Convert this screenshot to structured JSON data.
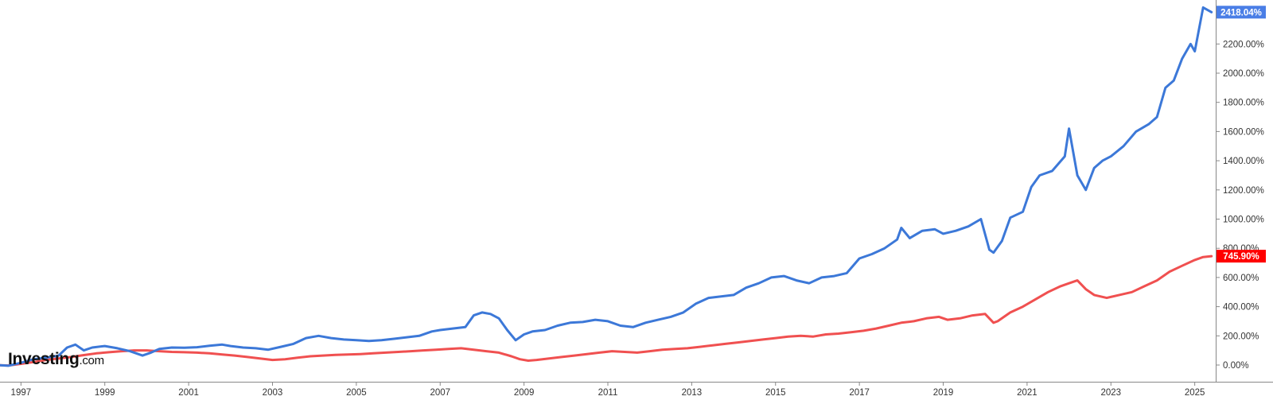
{
  "logo": {
    "main": "Investing",
    "suffix": ".com"
  },
  "chart_data": {
    "type": "line",
    "title": "",
    "xlabel": "",
    "ylabel": "",
    "x_range": [
      1996.5,
      2025.5
    ],
    "y_range": [
      -0.1,
      26.0
    ],
    "x_ticks": [
      "1997",
      "1999",
      "2001",
      "2003",
      "2005",
      "2007",
      "2009",
      "2011",
      "2013",
      "2015",
      "2017",
      "2019",
      "2021",
      "2023",
      "2025"
    ],
    "y_ticks": [
      {
        "value": 0,
        "label": "0.00%"
      },
      {
        "value": 200,
        "label": "200.00%"
      },
      {
        "value": 400,
        "label": "400.00%"
      },
      {
        "value": 600,
        "label": "600.00%"
      },
      {
        "value": 800,
        "label": "800.00%"
      },
      {
        "value": 1000,
        "label": "1000.00%"
      },
      {
        "value": 1200,
        "label": "1200.00%"
      },
      {
        "value": 1400,
        "label": "1400.00%"
      },
      {
        "value": 1600,
        "label": "1600.00%"
      },
      {
        "value": 1800,
        "label": "1800.00%"
      },
      {
        "value": 2000,
        "label": "2000.00%"
      },
      {
        "value": 2200,
        "label": "2200.00%"
      }
    ],
    "grid": false,
    "series": [
      {
        "color": "#3c78d8",
        "last_label": "2418.04%",
        "x": [
          1996.4,
          1996.7,
          1997.0,
          1997.3,
          1997.6,
          1997.9,
          1998.1,
          1998.3,
          1998.5,
          1998.7,
          1999.0,
          1999.3,
          1999.6,
          1999.9,
          2000.1,
          2000.3,
          2000.6,
          2000.9,
          2001.2,
          2001.5,
          2001.8,
          2002.0,
          2002.3,
          2002.6,
          2002.9,
          2003.2,
          2003.5,
          2003.8,
          2004.1,
          2004.4,
          2004.7,
          2005.0,
          2005.3,
          2005.6,
          2005.9,
          2006.2,
          2006.5,
          2006.8,
          2007.0,
          2007.3,
          2007.6,
          2007.8,
          2008.0,
          2008.2,
          2008.4,
          2008.6,
          2008.8,
          2009.0,
          2009.2,
          2009.5,
          2009.8,
          2010.1,
          2010.4,
          2010.7,
          2011.0,
          2011.3,
          2011.6,
          2011.9,
          2012.2,
          2012.5,
          2012.8,
          2013.1,
          2013.4,
          2013.7,
          2014.0,
          2014.3,
          2014.6,
          2014.9,
          2015.2,
          2015.5,
          2015.8,
          2016.1,
          2016.4,
          2016.7,
          2017.0,
          2017.3,
          2017.6,
          2017.9,
          2018.0,
          2018.2,
          2018.5,
          2018.8,
          2019.0,
          2019.3,
          2019.6,
          2019.9,
          2020.1,
          2020.2,
          2020.4,
          2020.6,
          2020.9,
          2021.1,
          2021.3,
          2021.6,
          2021.9,
          2022.0,
          2022.2,
          2022.4,
          2022.6,
          2022.8,
          2023.0,
          2023.3,
          2023.6,
          2023.9,
          2024.1,
          2024.3,
          2024.5,
          2024.7,
          2024.9,
          2025.0,
          2025.2,
          2025.4
        ],
        "values": [
          0,
          -5,
          15,
          40,
          50,
          65,
          120,
          140,
          100,
          120,
          130,
          115,
          95,
          65,
          85,
          110,
          120,
          118,
          122,
          132,
          140,
          130,
          120,
          115,
          105,
          125,
          145,
          185,
          200,
          185,
          175,
          170,
          165,
          170,
          180,
          190,
          200,
          230,
          240,
          250,
          260,
          340,
          360,
          350,
          320,
          240,
          170,
          210,
          230,
          240,
          270,
          290,
          295,
          310,
          300,
          270,
          260,
          290,
          310,
          330,
          360,
          420,
          460,
          470,
          480,
          530,
          560,
          600,
          610,
          580,
          560,
          600,
          610,
          630,
          730,
          760,
          800,
          860,
          940,
          870,
          920,
          930,
          900,
          920,
          950,
          1000,
          790,
          770,
          850,
          1010,
          1050,
          1220,
          1300,
          1330,
          1430,
          1620,
          1300,
          1200,
          1350,
          1400,
          1430,
          1500,
          1600,
          1650,
          1700,
          1900,
          1950,
          2100,
          2200,
          2150,
          2450,
          2418
        ]
      },
      {
        "color": "#f05050",
        "last_label": "745.90%",
        "x": [
          1996.4,
          1996.7,
          1997.0,
          1997.3,
          1997.6,
          1997.9,
          1998.2,
          1998.5,
          1998.8,
          1999.1,
          1999.4,
          1999.7,
          2000.0,
          2000.3,
          2000.6,
          2000.9,
          2001.2,
          2001.5,
          2001.8,
          2002.1,
          2002.4,
          2002.7,
          2003.0,
          2003.3,
          2003.6,
          2003.9,
          2004.2,
          2004.5,
          2004.8,
          2005.1,
          2005.4,
          2005.7,
          2006.0,
          2006.3,
          2006.6,
          2006.9,
          2007.2,
          2007.5,
          2007.8,
          2008.1,
          2008.4,
          2008.7,
          2008.9,
          2009.1,
          2009.3,
          2009.6,
          2009.9,
          2010.2,
          2010.5,
          2010.8,
          2011.1,
          2011.4,
          2011.7,
          2012.0,
          2012.3,
          2012.6,
          2012.9,
          2013.2,
          2013.5,
          2013.8,
          2014.1,
          2014.4,
          2014.7,
          2015.0,
          2015.3,
          2015.6,
          2015.9,
          2016.2,
          2016.5,
          2016.8,
          2017.1,
          2017.4,
          2017.7,
          2018.0,
          2018.3,
          2018.6,
          2018.9,
          2019.1,
          2019.4,
          2019.7,
          2020.0,
          2020.2,
          2020.3,
          2020.6,
          2020.9,
          2021.2,
          2021.5,
          2021.8,
          2022.0,
          2022.2,
          2022.4,
          2022.6,
          2022.9,
          2023.2,
          2023.5,
          2023.8,
          2024.1,
          2024.4,
          2024.7,
          2025.0,
          2025.2,
          2025.4
        ],
        "values": [
          0,
          -3,
          8,
          20,
          35,
          45,
          55,
          68,
          80,
          88,
          95,
          100,
          100,
          95,
          90,
          88,
          85,
          80,
          72,
          65,
          55,
          45,
          35,
          40,
          50,
          60,
          65,
          70,
          72,
          75,
          80,
          85,
          90,
          95,
          100,
          105,
          110,
          115,
          105,
          95,
          85,
          60,
          40,
          30,
          35,
          45,
          55,
          65,
          75,
          85,
          95,
          90,
          85,
          95,
          105,
          110,
          115,
          125,
          135,
          145,
          155,
          165,
          175,
          185,
          195,
          200,
          195,
          210,
          215,
          225,
          235,
          250,
          270,
          290,
          300,
          320,
          330,
          310,
          320,
          340,
          350,
          290,
          300,
          360,
          400,
          450,
          500,
          540,
          560,
          580,
          520,
          480,
          460,
          480,
          500,
          540,
          580,
          640,
          680,
          720,
          740,
          746
        ]
      }
    ]
  }
}
